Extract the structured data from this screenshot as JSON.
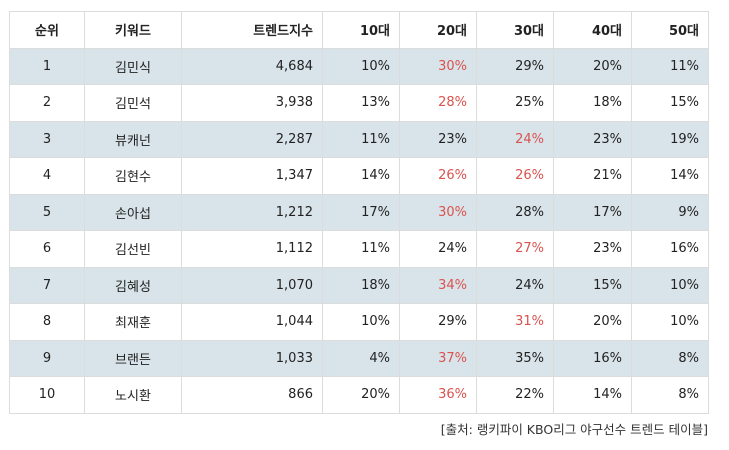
{
  "headers": [
    "순위",
    "키워드",
    "트렌드지수",
    "10대",
    "20대",
    "30대",
    "40대",
    "50대"
  ],
  "rows": [
    {
      "rank": "1",
      "keyword": "김민식",
      "index": "4,684",
      "a10": "10%",
      "a20": "30%",
      "a30": "29%",
      "a40": "20%",
      "a50": "11%",
      "highlight": [
        "a20"
      ]
    },
    {
      "rank": "2",
      "keyword": "김민석",
      "index": "3,938",
      "a10": "13%",
      "a20": "28%",
      "a30": "25%",
      "a40": "18%",
      "a50": "15%",
      "highlight": [
        "a20"
      ]
    },
    {
      "rank": "3",
      "keyword": "뷰캐넌",
      "index": "2,287",
      "a10": "11%",
      "a20": "23%",
      "a30": "24%",
      "a40": "23%",
      "a50": "19%",
      "highlight": [
        "a30"
      ]
    },
    {
      "rank": "4",
      "keyword": "김현수",
      "index": "1,347",
      "a10": "14%",
      "a20": "26%",
      "a30": "26%",
      "a40": "21%",
      "a50": "14%",
      "highlight": [
        "a20",
        "a30"
      ]
    },
    {
      "rank": "5",
      "keyword": "손아섭",
      "index": "1,212",
      "a10": "17%",
      "a20": "30%",
      "a30": "28%",
      "a40": "17%",
      "a50": "9%",
      "highlight": [
        "a20"
      ]
    },
    {
      "rank": "6",
      "keyword": "김선빈",
      "index": "1,112",
      "a10": "11%",
      "a20": "24%",
      "a30": "27%",
      "a40": "23%",
      "a50": "16%",
      "highlight": [
        "a30"
      ]
    },
    {
      "rank": "7",
      "keyword": "김혜성",
      "index": "1,070",
      "a10": "18%",
      "a20": "34%",
      "a30": "24%",
      "a40": "15%",
      "a50": "10%",
      "highlight": [
        "a20"
      ]
    },
    {
      "rank": "8",
      "keyword": "최재훈",
      "index": "1,044",
      "a10": "10%",
      "a20": "29%",
      "a30": "31%",
      "a40": "20%",
      "a50": "10%",
      "highlight": [
        "a30"
      ]
    },
    {
      "rank": "9",
      "keyword": "브랜든",
      "index": "1,033",
      "a10": "4%",
      "a20": "37%",
      "a30": "35%",
      "a40": "16%",
      "a50": "8%",
      "highlight": [
        "a20"
      ]
    },
    {
      "rank": "10",
      "keyword": "노시환",
      "index": "866",
      "a10": "20%",
      "a20": "36%",
      "a30": "22%",
      "a40": "14%",
      "a50": "8%",
      "highlight": [
        "a20"
      ]
    }
  ],
  "source": "[출처: 랭키파이 KBO리그 야구선수 트렌드 테이블]",
  "colors": {
    "highlight_text": "#d9534f",
    "shaded_row": "#d9e4ea",
    "border": "#dcdcdc"
  }
}
